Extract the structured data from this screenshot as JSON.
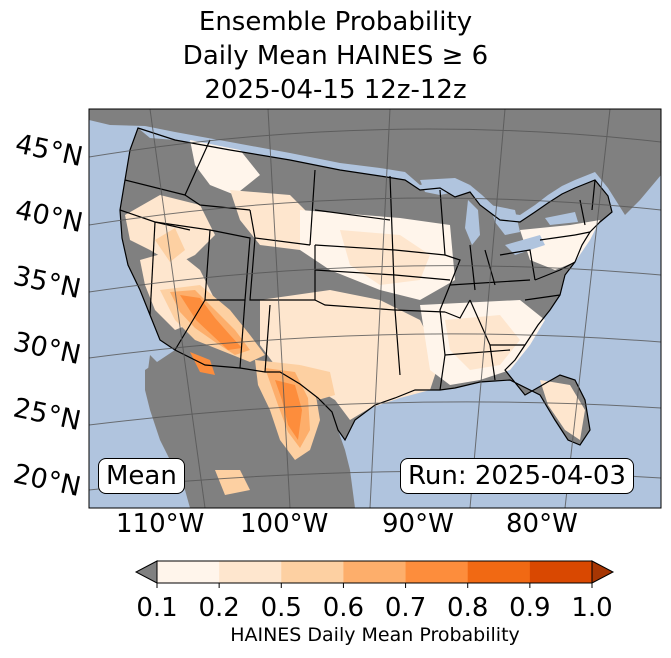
{
  "title": {
    "line1": "Ensemble Probability",
    "line2": "Daily Mean HAINES ≥ 6",
    "line3": "2025-04-15 12z-12z"
  },
  "map": {
    "lat_labels": [
      "45°N",
      "40°N",
      "35°N",
      "30°N",
      "25°N",
      "20°N"
    ],
    "lon_labels": [
      "110°W",
      "100°W",
      "90°W",
      "80°W"
    ],
    "colors": {
      "ocean": "#b0c4de",
      "land_no_data": "#808080",
      "border": "#000000",
      "gridline": "#555555"
    }
  },
  "annotations": {
    "mean_label": "Mean",
    "run_label": "Run: 2025-04-03"
  },
  "colorbar": {
    "title": "HAINES Daily Mean Probability",
    "ticks": [
      "0.1",
      "0.2",
      "0.5",
      "0.6",
      "0.7",
      "0.8",
      "0.9",
      "1.0"
    ],
    "colors": [
      "#fff5eb",
      "#fee6ce",
      "#fdd0a2",
      "#fdae6b",
      "#fd8d3c",
      "#f16913",
      "#d94801",
      "#a63603"
    ],
    "under_color": "#808080"
  }
}
